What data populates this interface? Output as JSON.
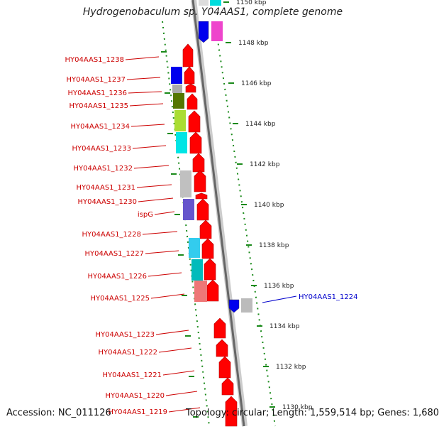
{
  "title": "Hydrogenobaculum sp. Y04AAS1, complete genome",
  "footer": {
    "accession": "Accession: NC_011126",
    "topology": "Topology: circular; Length: 1,559,514 bp; Genes: 1,680"
  },
  "colors": {
    "gene_label": "#cc0000",
    "highlight_label": "#0000cc",
    "ruler_dots": "#1a8a1a",
    "backbone_dark": "#666666",
    "backbone_light": "#cccccc",
    "arrow_red": "#ff0000"
  },
  "scale_ticks": [
    {
      "label": "1150 kbp"
    },
    {
      "label": "1148 kbp"
    },
    {
      "label": "1146 kbp"
    },
    {
      "label": "1144 kbp"
    },
    {
      "label": "1142 kbp"
    },
    {
      "label": "1140 kbp"
    },
    {
      "label": "1138 kbp"
    },
    {
      "label": "1136 kbp"
    },
    {
      "label": "1134 kbp"
    },
    {
      "label": "1132 kbp"
    },
    {
      "label": "1130 kbp"
    }
  ],
  "gene_labels_left": [
    {
      "label": "HY04AAS1_1238"
    },
    {
      "label": "HY04AAS1_1237"
    },
    {
      "label": "HY04AAS1_1236"
    },
    {
      "label": "HY04AAS1_1235"
    },
    {
      "label": "HY04AAS1_1234"
    },
    {
      "label": "HY04AAS1_1233"
    },
    {
      "label": "HY04AAS1_1232"
    },
    {
      "label": "HY04AAS1_1231"
    },
    {
      "label": "HY04AAS1_1230"
    },
    {
      "label": "ispG"
    },
    {
      "label": "HY04AAS1_1228"
    },
    {
      "label": "HY04AAS1_1227"
    },
    {
      "label": "HY04AAS1_1226"
    },
    {
      "label": "HY04AAS1_1225"
    },
    {
      "label": "HY04AAS1_1223"
    },
    {
      "label": "HY04AAS1_1222"
    },
    {
      "label": "HY04AAS1_1221"
    },
    {
      "label": "HY04AAS1_1220"
    },
    {
      "label": "HY04AAS1_1219"
    }
  ],
  "gene_labels_right": [
    {
      "label": "HY04AAS1_1224"
    }
  ]
}
